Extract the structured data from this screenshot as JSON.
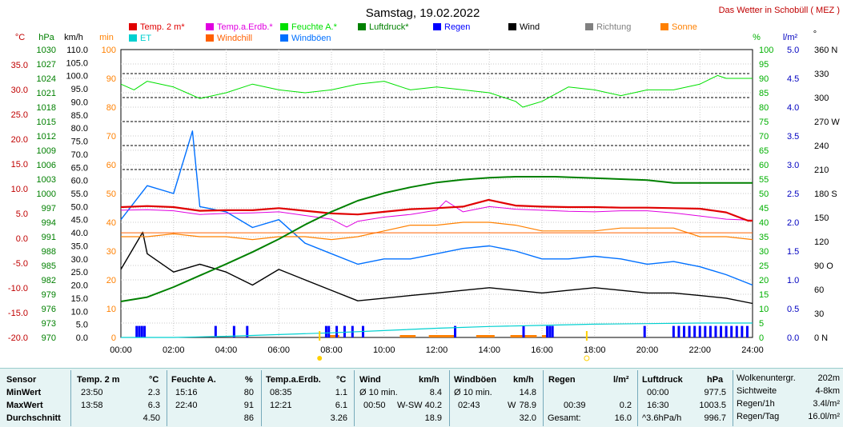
{
  "title": "Samstag, 19.02.2022",
  "site": "Das Wetter in Schobüll ( MEZ )",
  "unit_headers": {
    "celsius": "°C",
    "hpa": "hPa",
    "kmh": "km/h",
    "min": "min",
    "percent": "%",
    "lm2": "l/m²",
    "deg": "°"
  },
  "legend": [
    {
      "label": "Temp. 2 m*",
      "color": "#e00000"
    },
    {
      "label": "Temp.a.Erdb.*",
      "color": "#e000e0"
    },
    {
      "label": "Feuchte A.*",
      "color": "#00e000"
    },
    {
      "label": "Luftdruck*",
      "color": "#008000"
    },
    {
      "label": "Regen",
      "color": "#0000ff"
    },
    {
      "label": "Wind",
      "color": "#000000"
    },
    {
      "label": "Richtung",
      "color": "#808080"
    },
    {
      "label": "Sonne",
      "color": "#ff8000"
    },
    {
      "label": "ET",
      "color": "#00d0d0"
    },
    {
      "label": "Windchill",
      "color": "#ff6000"
    },
    {
      "label": "Windböen",
      "color": "#0070ff"
    }
  ],
  "axes": {
    "celsius": [
      "35.0",
      "30.0",
      "25.0",
      "20.0",
      "15.0",
      "10.0",
      "5.0",
      "0.0",
      "-5.0",
      "-10.0",
      "-15.0",
      "-20.0"
    ],
    "hpa": [
      "1030",
      "1027",
      "1024",
      "1021",
      "1018",
      "1015",
      "1012",
      "1009",
      "1006",
      "1003",
      "1000",
      "997",
      "994",
      "991",
      "988",
      "985",
      "982",
      "979",
      "976",
      "973",
      "970"
    ],
    "kmh": [
      "110.0",
      "105.0",
      "100.0",
      "95.0",
      "90.0",
      "85.0",
      "80.0",
      "75.0",
      "70.0",
      "65.0",
      "60.0",
      "55.0",
      "50.0",
      "45.0",
      "40.0",
      "35.0",
      "30.0",
      "25.0",
      "20.0",
      "15.0",
      "10.0",
      "5.0",
      "0.0"
    ],
    "min": [
      "100",
      "90",
      "80",
      "70",
      "60",
      "50",
      "40",
      "30",
      "20",
      "10",
      "0"
    ],
    "percent": [
      "100",
      "95",
      "90",
      "85",
      "80",
      "75",
      "70",
      "65",
      "60",
      "55",
      "50",
      "45",
      "40",
      "35",
      "30",
      "25",
      "20",
      "15",
      "10",
      "5",
      "0"
    ],
    "lm2": [
      "5.0",
      "4.5",
      "4.0",
      "3.5",
      "3.0",
      "2.5",
      "2.0",
      "1.5",
      "1.0",
      "0.5",
      "0.0"
    ],
    "direction": [
      "360 N",
      "330",
      "300",
      "270 W",
      "240",
      "210",
      "180 S",
      "150",
      "120",
      "90 O",
      "60",
      "30",
      "0 N"
    ],
    "time": [
      "00:00",
      "02:00",
      "04:00",
      "06:00",
      "08:00",
      "10:00",
      "12:00",
      "14:00",
      "16:00",
      "18:00",
      "20:00",
      "22:00",
      "24:00"
    ]
  },
  "chart_data": {
    "type": "line",
    "x_unit": "hours",
    "xlim": [
      0,
      24
    ],
    "axes_ranges": {
      "temp_c": [
        -20,
        35
      ],
      "pressure_hpa": [
        970,
        1030
      ],
      "wind_kmh": [
        0,
        110
      ],
      "sun_min": [
        0,
        100
      ],
      "humidity_pct": [
        0,
        100
      ],
      "rain_lm2": [
        0,
        5
      ],
      "direction_deg": [
        0,
        360
      ]
    },
    "grid": true,
    "series": [
      {
        "name": "Temp. 2 m*",
        "axis": "temp_c",
        "color": "#e00000",
        "x": [
          0,
          1,
          2,
          3,
          4,
          5,
          6,
          7,
          8,
          9,
          10,
          11,
          12,
          13,
          13.97,
          15,
          16,
          17,
          18,
          19,
          20,
          21,
          22,
          23,
          23.83,
          24
        ],
        "values": [
          4.9,
          5.1,
          4.9,
          4.2,
          4.3,
          4.3,
          4.7,
          4.2,
          3.7,
          3.5,
          4.0,
          4.5,
          4.7,
          5.0,
          6.3,
          5.2,
          5.0,
          4.9,
          4.9,
          4.8,
          4.8,
          4.7,
          4.6,
          3.9,
          2.3,
          2.3
        ]
      },
      {
        "name": "Temp.a.Erdb.*",
        "axis": "temp_c",
        "color": "#e000e0",
        "x": [
          0,
          1,
          2,
          3,
          4,
          5,
          6,
          7,
          8,
          8.58,
          9,
          10,
          11,
          12,
          12.35,
          13,
          14,
          15,
          16,
          17,
          18,
          19,
          20,
          21,
          22,
          23,
          24
        ],
        "values": [
          4.3,
          4.4,
          4.2,
          3.5,
          3.7,
          3.8,
          4.0,
          3.3,
          2.6,
          1.1,
          2.2,
          3.0,
          3.5,
          4.3,
          6.1,
          4.0,
          5.0,
          4.5,
          4.3,
          4.1,
          4.0,
          4.2,
          4.2,
          3.8,
          3.2,
          2.6,
          2.4
        ]
      },
      {
        "name": "Feuchte A.*",
        "axis": "humidity_pct",
        "color": "#00e000",
        "x": [
          0,
          0.5,
          1,
          2,
          2.5,
          3,
          4,
          5,
          6,
          7,
          8,
          9,
          10,
          11,
          12,
          13,
          14,
          15,
          15.27,
          16,
          17,
          18,
          19,
          20,
          21,
          22,
          22.67,
          23,
          24
        ],
        "values": [
          88,
          86,
          89,
          87,
          85,
          83,
          85,
          88,
          86,
          85,
          86,
          88,
          89,
          86,
          87,
          86,
          85,
          82,
          80,
          82,
          87,
          86,
          84,
          86,
          86,
          88,
          91,
          90,
          90
        ]
      },
      {
        "name": "Luftdruck*",
        "axis": "pressure_hpa",
        "color": "#008000",
        "x": [
          0,
          1,
          2,
          3,
          4,
          5,
          6,
          7,
          8,
          9,
          10,
          11,
          12,
          13,
          14,
          15,
          16,
          16.5,
          17,
          18,
          19,
          20,
          21,
          22,
          23,
          24
        ],
        "values": [
          977.5,
          978.4,
          980.5,
          982.9,
          985.3,
          987.8,
          990.5,
          993.5,
          996.2,
          998.5,
          1000.1,
          1001.3,
          1002.3,
          1002.9,
          1003.3,
          1003.5,
          1003.5,
          1003.5,
          1003.4,
          1003.2,
          1003.0,
          1002.8,
          1002.2,
          1002.2,
          1002.2,
          1002.2
        ]
      },
      {
        "name": "Wind",
        "axis": "wind_kmh",
        "color": "#000000",
        "x": [
          0,
          0.83,
          1,
          2,
          3,
          4,
          5,
          6,
          7,
          8,
          9,
          10,
          11,
          12,
          13,
          14,
          15,
          16,
          17,
          18,
          19,
          20,
          21,
          22,
          23,
          24
        ],
        "values": [
          26,
          40.2,
          32,
          25,
          28,
          25,
          20,
          26,
          22,
          18,
          14,
          15,
          16,
          17,
          18,
          19,
          18,
          17,
          18,
          19,
          18,
          17,
          17,
          16,
          15,
          13
        ]
      },
      {
        "name": "Windböen",
        "axis": "wind_kmh",
        "color": "#0070ff",
        "x": [
          0,
          1,
          2,
          2.72,
          3,
          4,
          5,
          6,
          7,
          8,
          9,
          10,
          11,
          12,
          13,
          14,
          15,
          16,
          17,
          18,
          19,
          20,
          21,
          22,
          23,
          24
        ],
        "values": [
          45,
          58,
          55,
          78.9,
          50,
          48,
          42,
          45,
          36,
          32,
          28,
          30,
          30,
          32,
          34,
          35,
          33,
          30,
          30,
          31,
          30,
          28,
          29,
          27,
          24,
          20
        ]
      },
      {
        "name": "Sonne",
        "axis": "sun_min",
        "color": "#ff8000",
        "x": [
          0,
          1,
          2,
          3,
          4,
          5,
          6,
          7,
          8,
          9,
          10,
          11,
          12,
          13,
          14,
          15,
          16,
          17,
          18,
          19,
          20,
          21,
          22,
          23,
          24
        ],
        "values": [
          35,
          35,
          36,
          35,
          35,
          34,
          35,
          35,
          34,
          35,
          37,
          39,
          39,
          40,
          40,
          39,
          37,
          37,
          37,
          38,
          38,
          38,
          35,
          35,
          34
        ]
      },
      {
        "name": "Windchill",
        "axis": "temp_c",
        "color": "#ff6000",
        "x": [
          0,
          24
        ],
        "values": [
          0,
          0
        ]
      },
      {
        "name": "ET",
        "axis": "rain_lm2",
        "color": "#00d0d0",
        "x": [
          0,
          2,
          4,
          6,
          8,
          10,
          12,
          14,
          16,
          18,
          20,
          22,
          24
        ],
        "values": [
          0.0,
          0.0,
          0.02,
          0.05,
          0.08,
          0.12,
          0.16,
          0.19,
          0.21,
          0.23,
          0.24,
          0.25,
          0.25
        ]
      }
    ],
    "rain_bars_hours": [
      0.6,
      0.7,
      0.8,
      0.9,
      3.6,
      4.3,
      4.8,
      7.8,
      7.9,
      8.2,
      8.5,
      8.8,
      9.2,
      12.7,
      15.3,
      16.2,
      16.3,
      16.4,
      19.9,
      21.0,
      21.2,
      21.4,
      21.6,
      21.8,
      22.0,
      22.2,
      22.4,
      22.6,
      22.8,
      23.0,
      23.2,
      23.4,
      23.6,
      23.8
    ],
    "rain_bar_value": 0.2,
    "sun_bars": [
      [
        7.9,
        8.3
      ],
      [
        10.6,
        11.2
      ],
      [
        11.7,
        12.7
      ],
      [
        13.5,
        14.2
      ],
      [
        14.8,
        15.8
      ],
      [
        16.0,
        16.2
      ]
    ],
    "direction_bands_deg": [
      330,
      300,
      270,
      240,
      210
    ]
  },
  "stats": {
    "headers": {
      "sensor": "Sensor",
      "temp": "Temp. 2 m",
      "temp_u": "°C",
      "hum": "Feuchte A.",
      "hum_u": "%",
      "soil": "Temp.a.Erdb.",
      "soil_u": "°C",
      "wind": "Wind",
      "wind_u": "km/h",
      "gust": "Windböen",
      "gust_u": "km/h",
      "rain": "Regen",
      "rain_u": "l/m²",
      "press": "Luftdruck",
      "press_u": "hPa"
    },
    "rows": {
      "min": {
        "label": "MinWert",
        "temp_t": "23:50",
        "temp_v": "2.3",
        "hum_t": "15:16",
        "hum_v": "80",
        "soil_t": "08:35",
        "soil_v": "1.1",
        "wind_t": "Ø 10 min.",
        "wind_v": "8.4",
        "gust_t": "Ø 10 min.",
        "gust_v": "14.8",
        "rain_t": "",
        "rain_v": "",
        "press_t": "00:00",
        "press_v": "977.5"
      },
      "max": {
        "label": "MaxWert",
        "temp_t": "13:58",
        "temp_v": "6.3",
        "hum_t": "22:40",
        "hum_v": "91",
        "soil_t": "12:21",
        "soil_v": "6.1",
        "wind_t": "00:50",
        "wind_d": "W-SW",
        "wind_v": "40.2",
        "gust_t": "02:43",
        "gust_d": "W",
        "gust_v": "78.9",
        "rain_t": "00:39",
        "rain_v": "0.2",
        "press_t": "16:30",
        "press_v": "1003.5"
      },
      "avg": {
        "label": "Durchschnitt",
        "temp_v": "4.50",
        "hum_v": "86",
        "soil_v": "3.26",
        "wind_v": "18.9",
        "gust_v": "32.0",
        "rain_t": "Gesamt:",
        "rain_v": "16.0",
        "press_t": "^3.6hPa/h",
        "press_v": "996.7"
      }
    },
    "extra": [
      {
        "label": "Wolkenuntergr.",
        "value": "202m"
      },
      {
        "label": "Sichtweite",
        "value": "4-8km"
      },
      {
        "label": "Regen/1h",
        "value": "3.4l/m²"
      },
      {
        "label": "Regen/Tag",
        "value": "16.0l/m²"
      }
    ]
  }
}
